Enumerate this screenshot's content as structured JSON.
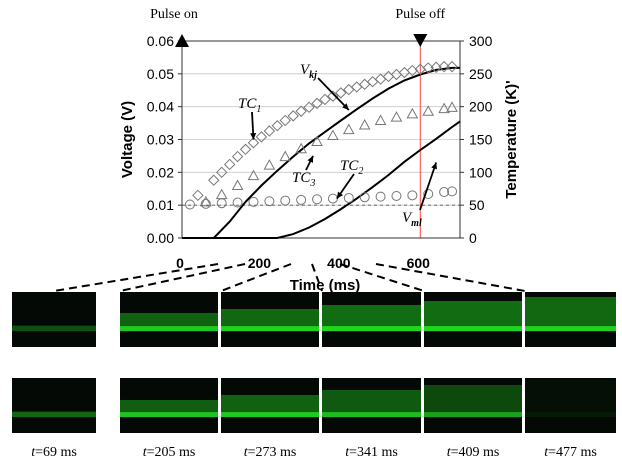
{
  "chart_data": {
    "type": "line",
    "xlabel": "Time (ms)",
    "ylabel": "Voltage (V)",
    "y2label": "Temperature (K)'",
    "xlim": [
      0,
      700
    ],
    "ylim": [
      0,
      0.06
    ],
    "y2lim": [
      0,
      300
    ],
    "xticks": [
      "0",
      "200",
      "400",
      "600"
    ],
    "yticks": [
      "0.00",
      "0.01",
      "0.02",
      "0.03",
      "0.04",
      "0.05",
      "0.06"
    ],
    "y2ticks": [
      "0",
      "50",
      "100",
      "150",
      "200",
      "250",
      "300"
    ],
    "markers": [
      {
        "label": "Pulse on",
        "x": 0
      },
      {
        "label": "Pulse off",
        "x": 600
      }
    ],
    "pulse_off_line_color": "#ff4444",
    "reference_line": {
      "axis": "y",
      "value": 0.01,
      "style": "dashed"
    },
    "series": [
      {
        "name": "Vkj",
        "axis": "y",
        "style": "line",
        "x": [
          0,
          80,
          120,
          160,
          200,
          240,
          280,
          320,
          360,
          400,
          440,
          480,
          520,
          560,
          600,
          640,
          680,
          700
        ],
        "values": [
          0,
          0,
          0.005,
          0.011,
          0.016,
          0.0205,
          0.0248,
          0.0288,
          0.0323,
          0.0358,
          0.0392,
          0.0425,
          0.0455,
          0.048,
          0.0498,
          0.0512,
          0.0518,
          0.0518
        ]
      },
      {
        "name": "Vml",
        "axis": "y",
        "style": "line",
        "x": [
          0,
          240,
          280,
          320,
          360,
          400,
          440,
          480,
          520,
          560,
          600,
          640,
          680,
          700
        ],
        "values": [
          0,
          0,
          0.0012,
          0.0032,
          0.0058,
          0.0088,
          0.012,
          0.0155,
          0.0192,
          0.0232,
          0.0268,
          0.0302,
          0.0338,
          0.0355
        ]
      },
      {
        "name": "TC1",
        "axis": "y2",
        "marker": "diamond",
        "x": [
          40,
          80,
          100,
          120,
          140,
          160,
          180,
          200,
          220,
          240,
          260,
          280,
          300,
          320,
          340,
          360,
          380,
          400,
          420,
          440,
          460,
          480,
          500,
          520,
          540,
          560,
          580,
          600,
          620,
          640,
          660,
          680
        ],
        "values": [
          65,
          88,
          100,
          112,
          124,
          135,
          145,
          154,
          163,
          171,
          179,
          186,
          193,
          199,
          205,
          211,
          216,
          221,
          226,
          230,
          234,
          238,
          242,
          246,
          249,
          252,
          255,
          257,
          259,
          260,
          261,
          261
        ]
      },
      {
        "name": "TC3",
        "axis": "y2",
        "marker": "triangle",
        "x": [
          60,
          100,
          140,
          180,
          220,
          260,
          300,
          340,
          380,
          420,
          460,
          500,
          540,
          580,
          620,
          660,
          680
        ],
        "values": [
          55,
          66,
          80,
          95,
          111,
          124,
          136,
          147,
          156,
          165,
          172,
          179,
          184,
          189,
          193,
          197,
          199
        ]
      },
      {
        "name": "TC2",
        "axis": "y2",
        "marker": "circle",
        "x": [
          20,
          60,
          100,
          140,
          180,
          220,
          260,
          300,
          340,
          380,
          420,
          460,
          500,
          540,
          580,
          620,
          660,
          680
        ],
        "values": [
          51,
          52,
          53,
          54,
          55,
          56,
          57,
          58,
          59,
          60,
          61,
          62,
          63,
          64,
          65,
          67,
          70,
          71
        ]
      }
    ],
    "annotations": [
      {
        "text": "TC",
        "sub": "1",
        "arrow_to": {
          "x": 180,
          "y2": 150
        }
      },
      {
        "text": "V",
        "sub": "kj",
        "arrow_to": {
          "x": 420,
          "y": 0.039
        }
      },
      {
        "text": "TC",
        "sub": "3",
        "arrow_to": {
          "x": 330,
          "y2": 125
        }
      },
      {
        "text": "TC",
        "sub": "2",
        "arrow_to": {
          "x": 390,
          "y2": 60
        }
      },
      {
        "text": "V",
        "sub": "ml",
        "arrow_to": {
          "x": 640,
          "y": 0.023
        }
      }
    ]
  },
  "frame_labels": [
    "t=69 ms",
    "t=205 ms",
    "t=273 ms",
    "t=341 ms",
    "t=409 ms",
    "t=477 ms"
  ],
  "frame_rows": [
    {
      "row": "top",
      "intensity": [
        0.25,
        0.85,
        0.9,
        0.95,
        0.95,
        0.9
      ]
    },
    {
      "row": "bottom",
      "intensity": [
        0.35,
        0.8,
        0.85,
        0.75,
        0.6,
        0.05
      ]
    }
  ],
  "frame_color": "#22dd22"
}
